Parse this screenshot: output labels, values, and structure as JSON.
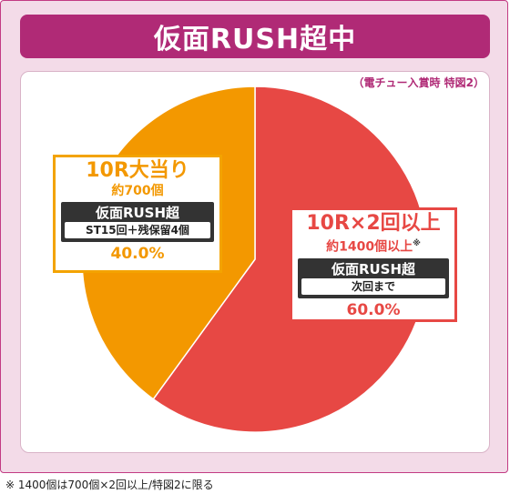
{
  "title": "仮面RUSH超中",
  "subnote": "（電チュー入賞時 特図2）",
  "footnote": "※ 1400個は700個×2回以上/特図2に限る",
  "colors": {
    "left_slice": "#f39800",
    "right_slice": "#e74844",
    "accent": "#b02a76"
  },
  "slices": {
    "left": {
      "name": "10R大当り",
      "payout": "約700個",
      "mode": "仮面RUSH超",
      "detail": "ST15回＋残保留4個",
      "pct": "40.0%"
    },
    "right": {
      "name": "10R×2回以上",
      "payout": "約1400個以上",
      "payout_mark": "※",
      "mode": "仮面RUSH超",
      "detail": "次回まで",
      "pct": "60.0%"
    }
  },
  "chart_data": {
    "type": "pie",
    "title": "仮面RUSH超中",
    "subtitle": "（電チュー入賞時 特図2）",
    "labels": [
      "10R×2回以上",
      "10R大当り"
    ],
    "values": [
      60.0,
      40.0
    ],
    "colors": [
      "#e74844",
      "#f39800"
    ],
    "start": "top",
    "direction": "clockwise"
  }
}
